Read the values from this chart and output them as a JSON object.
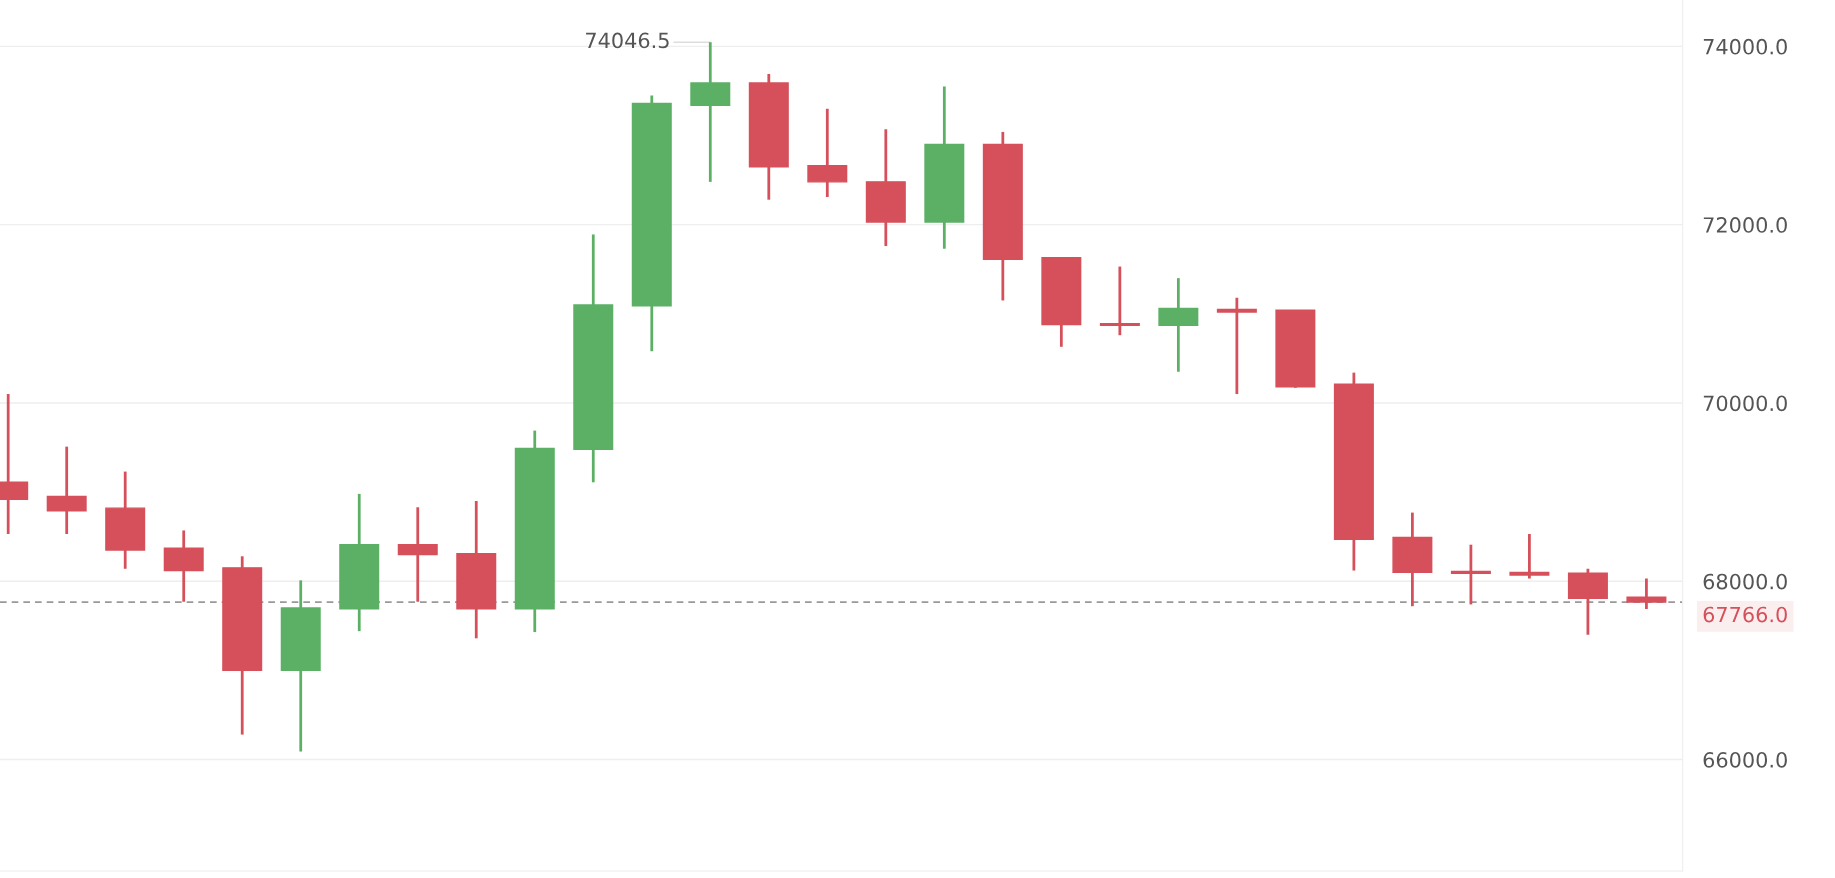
{
  "chart_data": {
    "type": "candlestick",
    "categories": [
      null,
      null,
      null,
      null,
      null,
      null,
      null,
      null,
      null,
      null,
      null,
      null,
      null,
      null,
      null,
      null,
      null,
      null,
      null,
      null,
      null,
      null,
      null,
      null,
      null,
      null,
      null,
      null,
      null
    ],
    "ohlc": [
      [
        69110,
        70100,
        68530,
        68920
      ],
      [
        68950,
        69510,
        68530,
        68790
      ],
      [
        68820,
        69230,
        68140,
        68350
      ],
      [
        68370,
        68570,
        67770,
        68120
      ],
      [
        68150,
        68280,
        66280,
        67000
      ],
      [
        67000,
        68010,
        66090,
        67700
      ],
      [
        67690,
        68980,
        67440,
        68410
      ],
      [
        68410,
        68830,
        67770,
        68300
      ],
      [
        68310,
        68900,
        67360,
        67690
      ],
      [
        67690,
        69690,
        67430,
        69490
      ],
      [
        69480,
        71890,
        69110,
        71100
      ],
      [
        71090,
        73450,
        70580,
        73360
      ],
      [
        73340,
        74046.5,
        72480,
        73590
      ],
      [
        73590,
        73690,
        72280,
        72650
      ],
      [
        72660,
        73300,
        72310,
        72480
      ],
      [
        72480,
        73070,
        71760,
        72030
      ],
      [
        72030,
        73550,
        71730,
        72900
      ],
      [
        72900,
        73040,
        71150,
        71610
      ],
      [
        71630,
        71630,
        70630,
        70880
      ],
      [
        70890,
        71530,
        70760,
        70870
      ],
      [
        70870,
        71400,
        70350,
        71060
      ],
      [
        71050,
        71180,
        70100,
        71020
      ],
      [
        71040,
        71040,
        70170,
        70180
      ],
      [
        70210,
        70340,
        68120,
        68470
      ],
      [
        68490,
        68770,
        67720,
        68100
      ],
      [
        68110,
        68410,
        67740,
        68090
      ],
      [
        68100,
        68530,
        68030,
        68070
      ],
      [
        68090,
        68140,
        67400,
        67810
      ],
      [
        67820,
        68030,
        67690,
        67766
      ]
    ],
    "colors": [
      "#d5505a",
      "#d5505a",
      "#d5505a",
      "#d5505a",
      "#d5505a",
      "#5cb065",
      "#5cb065",
      "#d5505a",
      "#d5505a",
      "#5cb065",
      "#5cb065",
      "#5cb065",
      "#5cb065",
      "#d5505a",
      "#d5505a",
      "#d5505a",
      "#5cb065",
      "#d5505a",
      "#d5505a",
      "#d5505a",
      "#5cb065",
      "#d5505a",
      "#d5505a",
      "#d5505a",
      "#d5505a",
      "#d5505a",
      "#d5505a",
      "#d5505a",
      "#d5505a"
    ],
    "ylim": [
      64750,
      74520
    ],
    "yticks": [
      {
        "value": 66000,
        "label": "66000.0"
      },
      {
        "value": 68000,
        "label": "68000.0"
      },
      {
        "value": 70000,
        "label": "70000.0"
      },
      {
        "value": 72000,
        "label": "72000.0"
      },
      {
        "value": 74000,
        "label": "74000.0"
      }
    ],
    "grid": "y",
    "tick_labels": "y",
    "ref_lines": [
      {
        "axis": "y",
        "value": 67766,
        "label": "67766.0",
        "color": "#999999",
        "line_style": "dashed"
      }
    ],
    "annotations": [
      "74046.5"
    ]
  }
}
